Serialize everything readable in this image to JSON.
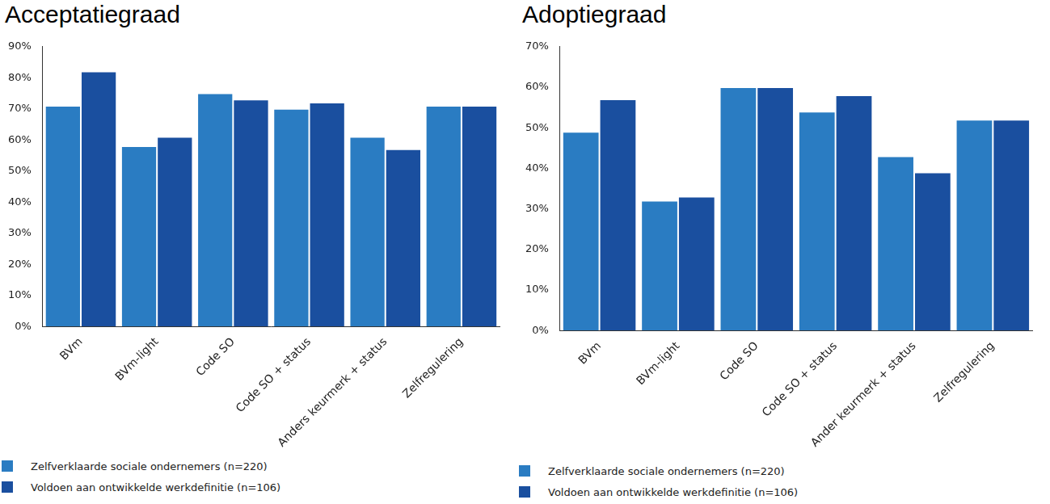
{
  "chart_data": [
    {
      "type": "bar",
      "title": "Acceptatiegraad",
      "categories": [
        "BVm",
        "BVm-light",
        "Code SO",
        "Code SO + status",
        "Anders keurmerk + status",
        "Zelfregulering"
      ],
      "series": [
        {
          "name": "Zelfverklaarde sociale ondernemers (n=220)",
          "color": "#2a7cc2",
          "values": [
            71,
            58,
            75,
            70,
            61,
            71
          ]
        },
        {
          "name": "Voldoen aan ontwikkelde werkdefinitie (n=106)",
          "color": "#1a4f9f",
          "values": [
            82,
            61,
            73,
            72,
            57,
            71
          ]
        }
      ],
      "ylim": [
        0,
        90
      ],
      "yticks": [
        {
          "value": 0,
          "label": "0%"
        },
        {
          "value": 10,
          "label": "10%"
        },
        {
          "value": 20,
          "label": "20%"
        },
        {
          "value": 30,
          "label": "30%"
        },
        {
          "value": 40,
          "label": "40%"
        },
        {
          "value": 50,
          "label": "50%"
        },
        {
          "value": 60,
          "label": "60%"
        },
        {
          "value": 70,
          "label": "70%"
        },
        {
          "value": 80,
          "label": "80%"
        },
        {
          "value": 90,
          "label": "90%"
        }
      ],
      "grid": false,
      "legend": "bottom"
    },
    {
      "type": "bar",
      "title": "Adoptiegraad",
      "categories": [
        "BVm",
        "BVm-light",
        "Code SO",
        "Code SO + status",
        "Ander keurmerk + status",
        "Zelfregulering"
      ],
      "series": [
        {
          "name": "Zelfverklaarde sociale ondernemers (n=220)",
          "color": "#2a7cc2",
          "values": [
            49,
            32,
            60,
            54,
            43,
            52
          ]
        },
        {
          "name": "Voldoen aan ontwikkelde werkdefinitie (n=106)",
          "color": "#1a4f9f",
          "values": [
            57,
            33,
            60,
            58,
            39,
            52
          ]
        }
      ],
      "ylim": [
        0,
        70
      ],
      "yticks": [
        {
          "value": 0,
          "label": "0%"
        },
        {
          "value": 10,
          "label": "10%"
        },
        {
          "value": 20,
          "label": "20%"
        },
        {
          "value": 30,
          "label": "30%"
        },
        {
          "value": 40,
          "label": "40%"
        },
        {
          "value": 50,
          "label": "50%"
        },
        {
          "value": 60,
          "label": "60%"
        },
        {
          "value": 70,
          "label": "70%"
        }
      ],
      "grid": false,
      "legend": "bottom"
    }
  ]
}
